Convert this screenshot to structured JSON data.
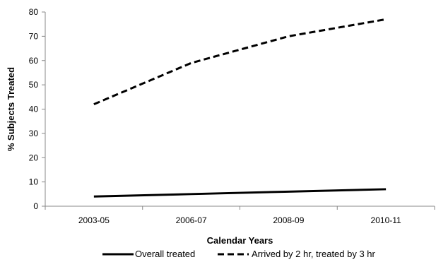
{
  "chart_data": {
    "type": "line",
    "categories": [
      "2003-05",
      "2006-07",
      "2008-09",
      "2010-11"
    ],
    "series": [
      {
        "name": "Overall treated",
        "values": [
          4,
          5,
          6,
          7
        ],
        "color": "#000000",
        "dash": "solid"
      },
      {
        "name": "Arrived by 2 hr, treated by 3 hr",
        "values": [
          42,
          59,
          70,
          77
        ],
        "color": "#000000",
        "dash": "dashed"
      }
    ],
    "title": "",
    "xlabel": "Calendar Years",
    "ylabel": "% Subjects Treated",
    "ylim": [
      0,
      80
    ],
    "yticks": [
      0,
      10,
      20,
      30,
      40,
      50,
      60,
      70,
      80
    ],
    "grid": false,
    "legend": "bottom"
  }
}
